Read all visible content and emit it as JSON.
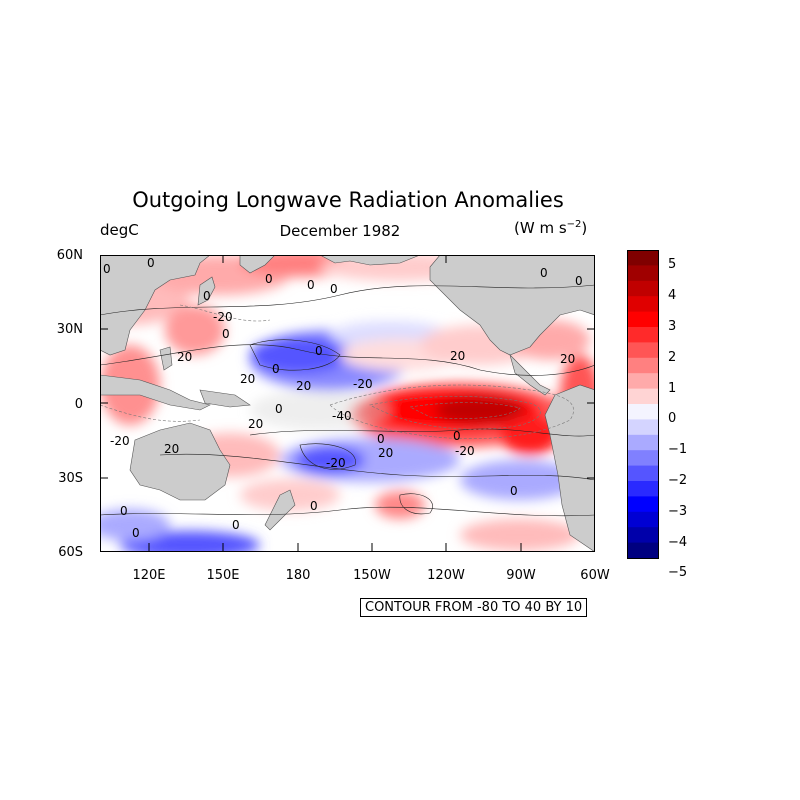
{
  "title": "Outgoing Longwave Radiation Anomalies",
  "left_subtitle": "degC",
  "center_subtitle": "December 1982",
  "right_subtitle_text": "(W m s",
  "right_subtitle_sup": "−2",
  "right_subtitle_close": ")",
  "lat_ticks": [
    "60N",
    "30N",
    "0",
    "30S",
    "60S"
  ],
  "lon_ticks": [
    "120E",
    "150E",
    "180",
    "150W",
    "120W",
    "90W",
    "60W"
  ],
  "colorbar": {
    "labels": [
      "5",
      "4",
      "3",
      "2",
      "1",
      "0",
      "−1",
      "−2",
      "−3",
      "−4",
      "−5"
    ],
    "colors": [
      "#800000",
      "#a00000",
      "#c00000",
      "#e00000",
      "#ff0000",
      "#ff2a2a",
      "#ff5555",
      "#ff8080",
      "#ffaaaa",
      "#ffd4d4",
      "#f4f4ff",
      "#d4d4ff",
      "#aaaaff",
      "#8080ff",
      "#5555ff",
      "#2a2aff",
      "#0000ff",
      "#0000d4",
      "#0000aa",
      "#000080"
    ]
  },
  "contour_info": "CONTOUR FROM -80 TO 40 BY 10",
  "contour_labels": [
    "0",
    "0",
    "0",
    "0",
    "0",
    "0",
    "-20",
    "0",
    "20",
    "0",
    "20",
    "20",
    "0",
    "20",
    "-20",
    "-40",
    "20",
    "0",
    "0",
    "-20",
    "0",
    "-20",
    "20",
    "0",
    "0",
    "0",
    "0",
    "0",
    "-20",
    "0",
    "0",
    "20",
    "0",
    "20"
  ],
  "colors": {
    "land": "#cccccc",
    "warm": "#ff0000",
    "cool": "#4444ff"
  }
}
